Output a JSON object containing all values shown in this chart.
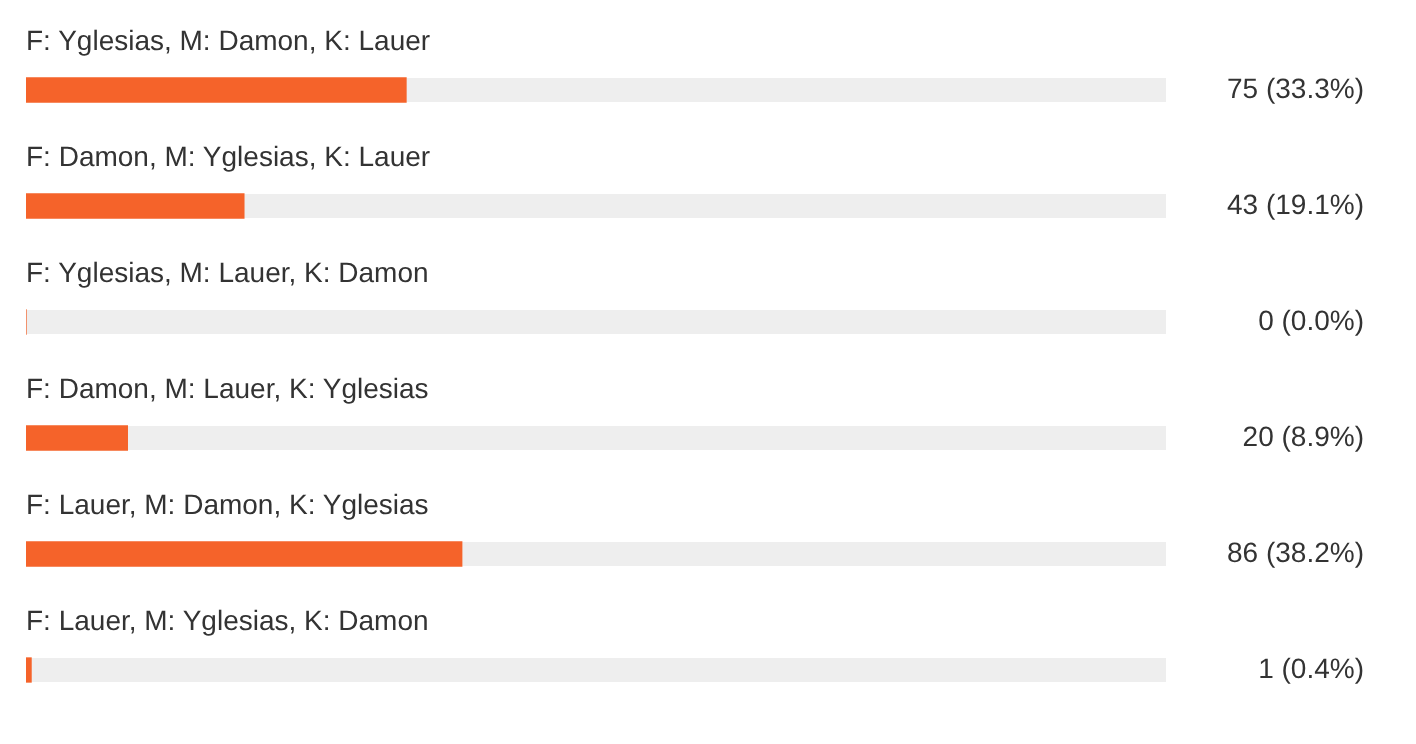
{
  "chart_data": {
    "type": "bar",
    "orientation": "horizontal",
    "categories": [
      "F: Yglesias, M: Damon, K: Lauer",
      "F: Damon, M: Yglesias, K: Lauer",
      "F: Yglesias, M: Lauer, K: Damon",
      "F: Damon, M: Lauer, K: Yglesias",
      "F: Lauer, M: Damon, K: Yglesias",
      "F: Lauer, M: Yglesias, K: Damon"
    ],
    "values": [
      75,
      43,
      0,
      20,
      86,
      1
    ],
    "value_labels": [
      "75 (33.3%)",
      "43 (19.1%)",
      "0 (0.0%)",
      "20 (8.9%)",
      "86 (38.2%)",
      "1 (0.4%)"
    ],
    "color": "#f5632a",
    "xlim": [
      0,
      225
    ]
  }
}
